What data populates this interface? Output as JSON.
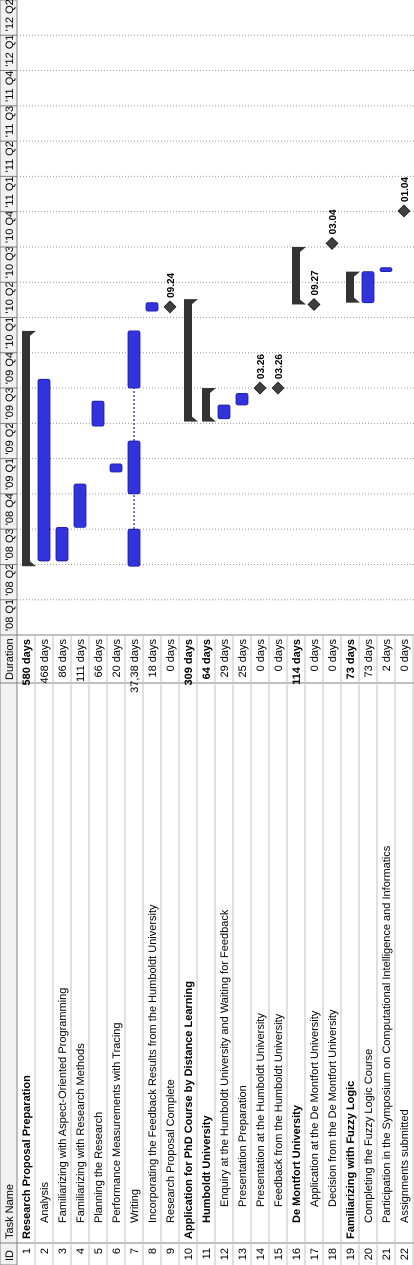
{
  "chart_data": {
    "type": "gantt",
    "columns": {
      "id": "ID",
      "task_name": "Task Name",
      "duration": "Duration"
    },
    "timeline": [
      "'08 Q1",
      "'08 Q2",
      "'08 Q3",
      "'08 Q4",
      "'09 Q1",
      "'09 Q2",
      "'09 Q3",
      "'09 Q4",
      "'10 Q1",
      "'10 Q2",
      "'10 Q3",
      "'10 Q4",
      "'11 Q1",
      "'11 Q2",
      "'11 Q3",
      "'11 Q4",
      "'12 Q1",
      "'12 Q2"
    ],
    "timeline_start_quarter": 0,
    "tasks": [
      {
        "id": "1",
        "name": "Research Proposal Preparation",
        "duration": "580 days",
        "summary": true,
        "indent": 0,
        "start": 1.95,
        "end": 8.62
      },
      {
        "id": "2",
        "name": "Analysis",
        "duration": "468 days",
        "indent": 1,
        "start": 2.1,
        "end": 7.25
      },
      {
        "id": "3",
        "name": "Familiarizing with Aspect-Oriented Programming",
        "duration": "86 days",
        "indent": 1,
        "start": 2.1,
        "end": 3.05
      },
      {
        "id": "4",
        "name": "Familiarizing with Research Methods",
        "duration": "111 days",
        "indent": 1,
        "start": 3.05,
        "end": 4.28
      },
      {
        "id": "5",
        "name": "Planning the Research",
        "duration": "66 days",
        "indent": 1,
        "start": 5.92,
        "end": 6.63
      },
      {
        "id": "6",
        "name": "Performance Measurements with Tracing",
        "duration": "20 days",
        "indent": 1,
        "start": 4.62,
        "end": 4.85
      },
      {
        "id": "7",
        "name": "Writing",
        "duration": "37,38 days",
        "indent": 1,
        "segments": [
          [
            1.95,
            3.0
          ],
          [
            4.0,
            5.5
          ],
          [
            7.0,
            8.62
          ]
        ]
      },
      {
        "id": "8",
        "name": "Incorporating the Feedback Results from the Humboldt University",
        "duration": "18 days",
        "indent": 1,
        "start": 9.18,
        "end": 9.42
      },
      {
        "id": "9",
        "name": "Research Proposal Complete",
        "duration": "0 days",
        "indent": 1,
        "milestone": true,
        "at": 9.3,
        "label": "09.24"
      },
      {
        "id": "10",
        "name": "Application for PhD Course by Distance Learning",
        "duration": "309 days",
        "summary": true,
        "indent": 0,
        "start": 6.05,
        "end": 9.52
      },
      {
        "id": "11",
        "name": "Humboldt University",
        "duration": "64 days",
        "summary": true,
        "indent": 1,
        "start": 6.05,
        "end": 7.0
      },
      {
        "id": "12",
        "name": "Enquiry at the Humboldt University and Waiting for Feedback",
        "duration": "29 days",
        "indent": 2,
        "start": 6.13,
        "end": 6.52
      },
      {
        "id": "13",
        "name": "Presentation Preparation",
        "duration": "25 days",
        "indent": 2,
        "start": 6.52,
        "end": 6.85
      },
      {
        "id": "14",
        "name": "Presentation at the Humboldt University",
        "duration": "0 days",
        "indent": 2,
        "milestone": true,
        "at": 7.0,
        "label": "03.26"
      },
      {
        "id": "15",
        "name": "Feedback from the Humboldt University",
        "duration": "0 days",
        "indent": 2,
        "milestone": true,
        "at": 7.0,
        "label": "03.26"
      },
      {
        "id": "16",
        "name": "De Montfort University",
        "duration": "114 days",
        "summary": true,
        "indent": 1,
        "start": 9.37,
        "end": 11.0
      },
      {
        "id": "17",
        "name": "Application at the De Montfort University",
        "duration": "0 days",
        "indent": 2,
        "milestone": true,
        "at": 9.37,
        "label": "09.27"
      },
      {
        "id": "18",
        "name": "Decision from the De Montfort University",
        "duration": "0 days",
        "indent": 2,
        "milestone": true,
        "at": 11.1,
        "label": "03.04"
      },
      {
        "id": "19",
        "name": "Familiarizing with Fuzzy Logic",
        "duration": "73 days",
        "summary": true,
        "indent": 0,
        "start": 9.42,
        "end": 10.3
      },
      {
        "id": "20",
        "name": "Completing the Fuzzy Logic Course",
        "duration": "73 days",
        "indent": 1,
        "start": 9.42,
        "end": 10.3
      },
      {
        "id": "21",
        "name": "Participation in the Symposium on Computational Intelligence and Informatics",
        "duration": "2 days",
        "indent": 1,
        "start": 10.3,
        "end": 10.33
      },
      {
        "id": "22",
        "name": "Assignments submitted",
        "duration": "0 days",
        "indent": 1,
        "milestone": true,
        "at": 12.02,
        "label": "01.04"
      }
    ]
  }
}
